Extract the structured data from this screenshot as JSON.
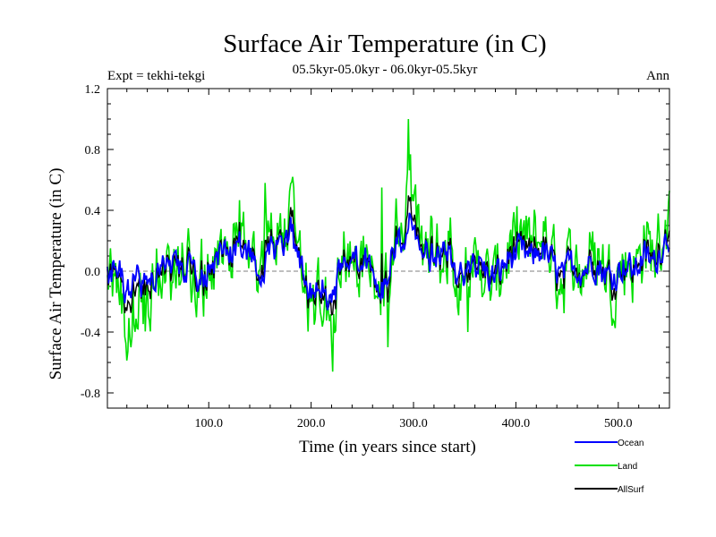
{
  "chart_data": {
    "type": "line",
    "title": "Surface Air Temperature (in C)",
    "subtitle": "05.5kyr-05.0kyr - 06.0kyr-05.5kyr",
    "left_note": "Expt = tekhi-tekgi",
    "right_note": "Ann",
    "xlabel": "Time (in years since start)",
    "ylabel": "Surface Air Temperature (in C)",
    "xlim": [
      1,
      550
    ],
    "ylim": [
      -0.9,
      1.2
    ],
    "xticks": [
      100,
      200,
      300,
      400,
      500
    ],
    "xtick_labels": [
      "100.0",
      "200.0",
      "300.0",
      "400.0",
      "500.0"
    ],
    "yticks": [
      -0.8,
      -0.4,
      0.0,
      0.4,
      0.8,
      1.2
    ],
    "ytick_labels": [
      "-0.8",
      "-0.4",
      "0.0",
      "0.4",
      "0.8",
      "1.2"
    ],
    "zero_line": true,
    "series_colors": {
      "Ocean": "#0000ff",
      "Land": "#00e000",
      "AllSurf": "#000000"
    },
    "legend": [
      {
        "name": "Ocean",
        "color": "#0000ff"
      },
      {
        "name": "Land",
        "color": "#00e000"
      },
      {
        "name": "AllSurf",
        "color": "#000000"
      }
    ],
    "anchors": [
      {
        "year": 1,
        "ocean": -0.05,
        "land": -0.15
      },
      {
        "year": 10,
        "ocean": 0.05,
        "land": 0.05
      },
      {
        "year": 20,
        "ocean": -0.15,
        "land": -0.35
      },
      {
        "year": 30,
        "ocean": -0.05,
        "land": -0.2
      },
      {
        "year": 40,
        "ocean": -0.12,
        "land": -0.28
      },
      {
        "year": 50,
        "ocean": 0.02,
        "land": 0.0
      },
      {
        "year": 60,
        "ocean": 0.08,
        "land": 0.1
      },
      {
        "year": 70,
        "ocean": -0.02,
        "land": -0.05
      },
      {
        "year": 80,
        "ocean": 0.05,
        "land": 0.05
      },
      {
        "year": 90,
        "ocean": -0.05,
        "land": -0.1
      },
      {
        "year": 100,
        "ocean": 0.0,
        "land": 0.0
      },
      {
        "year": 110,
        "ocean": 0.1,
        "land": 0.15
      },
      {
        "year": 120,
        "ocean": 0.08,
        "land": 0.1
      },
      {
        "year": 130,
        "ocean": 0.18,
        "land": 0.25
      },
      {
        "year": 140,
        "ocean": 0.12,
        "land": 0.15
      },
      {
        "year": 150,
        "ocean": -0.05,
        "land": -0.1
      },
      {
        "year": 160,
        "ocean": 0.2,
        "land": 0.3
      },
      {
        "year": 170,
        "ocean": 0.1,
        "land": 0.15
      },
      {
        "year": 180,
        "ocean": 0.25,
        "land": 0.35
      },
      {
        "year": 190,
        "ocean": 0.05,
        "land": 0.05
      },
      {
        "year": 200,
        "ocean": -0.15,
        "land": -0.25
      },
      {
        "year": 210,
        "ocean": -0.05,
        "land": -0.1
      },
      {
        "year": 220,
        "ocean": -0.2,
        "land": -0.35
      },
      {
        "year": 230,
        "ocean": 0.0,
        "land": 0.0
      },
      {
        "year": 240,
        "ocean": 0.05,
        "land": 0.1
      },
      {
        "year": 250,
        "ocean": 0.1,
        "land": 0.15
      },
      {
        "year": 260,
        "ocean": 0.0,
        "land": 0.0
      },
      {
        "year": 270,
        "ocean": -0.1,
        "land": -0.2
      },
      {
        "year": 280,
        "ocean": 0.15,
        "land": 0.2
      },
      {
        "year": 290,
        "ocean": 0.2,
        "land": 0.3
      },
      {
        "year": 297,
        "ocean": 0.35,
        "land": 0.55
      },
      {
        "year": 305,
        "ocean": 0.15,
        "land": 0.25
      },
      {
        "year": 315,
        "ocean": 0.1,
        "land": 0.15
      },
      {
        "year": 325,
        "ocean": 0.05,
        "land": 0.1
      },
      {
        "year": 335,
        "ocean": 0.12,
        "land": 0.2
      },
      {
        "year": 345,
        "ocean": -0.05,
        "land": -0.1
      },
      {
        "year": 355,
        "ocean": 0.0,
        "land": 0.0
      },
      {
        "year": 365,
        "ocean": 0.05,
        "land": 0.05
      },
      {
        "year": 375,
        "ocean": -0.05,
        "land": -0.1
      },
      {
        "year": 385,
        "ocean": 0.0,
        "land": 0.0
      },
      {
        "year": 395,
        "ocean": 0.1,
        "land": 0.15
      },
      {
        "year": 405,
        "ocean": 0.12,
        "land": 0.2
      },
      {
        "year": 415,
        "ocean": 0.08,
        "land": 0.15
      },
      {
        "year": 425,
        "ocean": 0.15,
        "land": 0.25
      },
      {
        "year": 435,
        "ocean": 0.05,
        "land": 0.1
      },
      {
        "year": 445,
        "ocean": -0.05,
        "land": -0.1
      },
      {
        "year": 455,
        "ocean": 0.05,
        "land": 0.1
      },
      {
        "year": 465,
        "ocean": 0.0,
        "land": 0.0
      },
      {
        "year": 475,
        "ocean": 0.08,
        "land": 0.15
      },
      {
        "year": 485,
        "ocean": 0.0,
        "land": 0.05
      },
      {
        "year": 495,
        "ocean": -0.05,
        "land": -0.1
      },
      {
        "year": 505,
        "ocean": 0.05,
        "land": 0.1
      },
      {
        "year": 515,
        "ocean": 0.0,
        "land": 0.0
      },
      {
        "year": 525,
        "ocean": 0.1,
        "land": 0.2
      },
      {
        "year": 535,
        "ocean": 0.05,
        "land": 0.1
      },
      {
        "year": 545,
        "ocean": 0.2,
        "land": 0.3
      },
      {
        "year": 550,
        "ocean": 0.25,
        "land": 0.4
      }
    ],
    "noise": {
      "ocean_amplitude": 0.09,
      "land_amplitude": 0.2
    },
    "spikes": [
      {
        "year": 24,
        "land": -0.5
      },
      {
        "year": 155,
        "land": 0.58
      },
      {
        "year": 183,
        "land": 0.55
      },
      {
        "year": 221,
        "land": -0.66
      },
      {
        "year": 269,
        "land": 0.55
      },
      {
        "year": 295,
        "land": 1.0
      },
      {
        "year": 275,
        "land": -0.5
      },
      {
        "year": 353,
        "land": -0.4
      }
    ]
  }
}
